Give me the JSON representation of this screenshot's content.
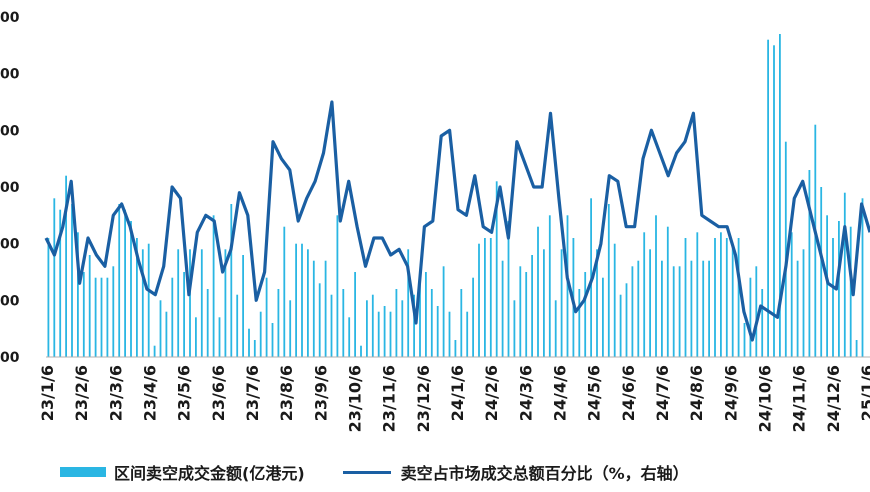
{
  "chart_data": {
    "type": "bar+line",
    "title": "",
    "y_left": {
      "ticks": [
        "00",
        "00",
        "00",
        "00",
        "00",
        "00",
        "00"
      ],
      "lim": [
        0,
        6
      ]
    },
    "y_right": {
      "lim": [
        0,
        6
      ]
    },
    "x_tick_labels": [
      "23/1/6",
      "23/2/6",
      "23/3/6",
      "23/4/6",
      "23/5/6",
      "23/6/6",
      "23/7/6",
      "23/8/6",
      "23/9/6",
      "23/10/6",
      "23/11/6",
      "23/12/6",
      "24/1/6",
      "24/2/6",
      "24/3/6",
      "24/4/6",
      "24/5/6",
      "24/6/6",
      "24/7/6",
      "24/8/6",
      "24/9/6",
      "24/10/6",
      "24/11/6",
      "24/12/6",
      "25/1/6"
    ],
    "series": [
      {
        "name": "区间卖空成交金额(亿港元)",
        "type": "bar",
        "color": "#2ab6e3",
        "values": [
          2.1,
          2.8,
          2.6,
          3.2,
          2.7,
          2.2,
          1.5,
          1.8,
          1.4,
          1.4,
          1.4,
          1.6,
          2.7,
          2.6,
          2.4,
          2.1,
          1.9,
          2.0,
          0.2,
          1.0,
          0.8,
          1.4,
          1.9,
          1.5,
          1.9,
          0.7,
          1.9,
          1.2,
          2.5,
          0.7,
          1.9,
          2.7,
          1.1,
          1.8,
          0.5,
          0.3,
          0.8,
          1.4,
          0.6,
          1.2,
          2.3,
          1.0,
          2.0,
          2.0,
          1.9,
          1.7,
          1.3,
          1.7,
          1.1,
          2.5,
          1.2,
          0.7,
          1.5,
          0.2,
          1.0,
          1.1,
          0.8,
          0.9,
          0.8,
          1.2,
          1.0,
          1.9,
          1.1,
          1.4,
          1.5,
          1.2,
          0.9,
          1.6,
          0.8,
          0.3,
          1.2,
          0.8,
          1.4,
          2.0,
          2.1,
          2.1,
          3.1,
          1.7,
          2.4,
          1.0,
          1.6,
          1.5,
          1.8,
          2.3,
          1.9,
          2.5,
          1.0,
          1.9,
          2.5,
          2.1,
          1.2,
          1.5,
          2.8,
          1.9,
          1.4,
          2.7,
          2.0,
          1.1,
          1.3,
          1.6,
          1.7,
          2.2,
          1.9,
          2.5,
          1.7,
          2.3,
          1.6,
          1.6,
          2.1,
          1.7,
          2.2,
          1.7,
          1.7,
          2.1,
          2.2,
          2.1,
          2.0,
          2.1,
          0.6,
          1.4,
          1.6,
          1.2,
          5.6,
          5.5,
          5.7,
          3.8,
          2.2,
          1.7,
          1.9,
          3.3,
          4.1,
          3.0,
          2.5,
          2.1,
          2.4,
          2.9,
          2.3,
          0.3,
          2.8
        ]
      },
      {
        "name": "卖空占市场成交总额百分比（%，右轴）",
        "type": "line",
        "color": "#1a5fa3",
        "values": [
          2.1,
          1.8,
          2.3,
          3.1,
          1.3,
          2.1,
          1.8,
          1.6,
          2.5,
          2.7,
          2.3,
          1.7,
          1.2,
          1.1,
          1.6,
          3.0,
          2.8,
          1.1,
          2.2,
          2.5,
          2.4,
          1.5,
          1.9,
          2.9,
          2.5,
          1.0,
          1.5,
          3.8,
          3.5,
          3.3,
          2.4,
          2.8,
          3.1,
          3.6,
          4.5,
          2.4,
          3.1,
          2.3,
          1.6,
          2.1,
          2.1,
          1.8,
          1.9,
          1.6,
          0.6,
          2.3,
          2.4,
          3.9,
          4.0,
          2.6,
          2.5,
          3.2,
          2.3,
          2.2,
          3.0,
          2.1,
          3.8,
          3.4,
          3.0,
          3.0,
          4.3,
          2.8,
          1.4,
          0.8,
          1.0,
          1.4,
          2.0,
          3.2,
          3.1,
          2.3,
          2.3,
          3.5,
          4.0,
          3.6,
          3.2,
          3.6,
          3.8,
          4.3,
          2.5,
          2.4,
          2.3,
          2.3,
          1.8,
          0.8,
          0.3,
          0.9,
          0.8,
          0.7,
          1.6,
          2.8,
          3.1,
          2.5,
          1.9,
          1.3,
          1.2,
          2.3,
          1.1,
          2.7,
          2.2
        ]
      }
    ],
    "grid": false,
    "legend_position": "bottom"
  }
}
